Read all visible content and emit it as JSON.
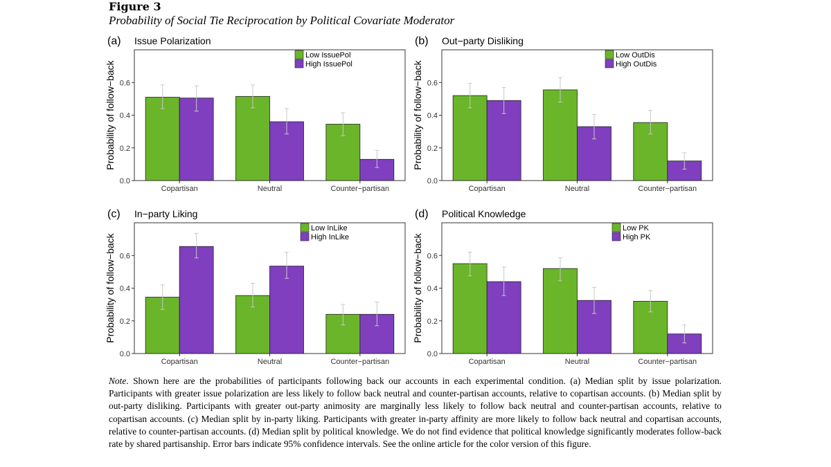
{
  "figure": {
    "title": "Figure 3",
    "subtitle": "Probability of Social Tie Reciprocation by Political Covariate Moderator"
  },
  "note": {
    "label": "Note",
    "text": ".  Shown here are the probabilities of participants following back our accounts in each experimental condition. (a) Median split by issue polarization. Participants with greater issue polarization are less likely to follow back neutral and counter-partisan accounts, relative to copartisan accounts. (b) Median split by out-party disliking. Participants with greater out-party animosity are marginally less likely to follow back neutral and counter-partisan accounts, relative to copartisan accounts. (c) Median split by in-party liking. Participants with greater in-party affinity are more likely to follow back neutral and copartisan accounts, relative to counter-partisan accounts. (d) Median split by political knowledge. We do not find evidence that political knowledge significantly moderates follow-back rate by shared partisanship. Error bars indicate 95% confidence intervals. See the online article for the color version of this figure."
  },
  "colors": {
    "low": "#6bb52a",
    "high": "#7f3fbf",
    "errorbar": "#c8c8c8",
    "axis": "#333333"
  },
  "chart_data": [
    {
      "type": "bar",
      "panel": "(a)",
      "title": "Issue Polarization",
      "ylabel": "Probability of follow−back",
      "ylim": [
        0,
        0.8
      ],
      "yticks": [
        "0.0",
        "0.2",
        "0.4",
        "0.6"
      ],
      "categories": [
        "Copartisan",
        "Neutral",
        "Counter−partisan"
      ],
      "series": [
        {
          "name": "Low IssuePol",
          "values": [
            0.51,
            0.515,
            0.345
          ],
          "ci_low": [
            0.44,
            0.445,
            0.275
          ],
          "ci_high": [
            0.585,
            0.585,
            0.415
          ]
        },
        {
          "name": "High IssuePol",
          "values": [
            0.505,
            0.36,
            0.13
          ],
          "ci_low": [
            0.425,
            0.285,
            0.08
          ],
          "ci_high": [
            0.58,
            0.44,
            0.185
          ]
        }
      ]
    },
    {
      "type": "bar",
      "panel": "(b)",
      "title": "Out−party Disliking",
      "ylabel": "Probability of follow−back",
      "ylim": [
        0,
        0.8
      ],
      "yticks": [
        "0.0",
        "0.2",
        "0.4",
        "0.6"
      ],
      "categories": [
        "Copartisan",
        "Neutral",
        "Counter−partisan"
      ],
      "series": [
        {
          "name": "Low OutDis",
          "values": [
            0.52,
            0.555,
            0.355
          ],
          "ci_low": [
            0.445,
            0.48,
            0.285
          ],
          "ci_high": [
            0.595,
            0.63,
            0.43
          ]
        },
        {
          "name": "High OutDis",
          "values": [
            0.49,
            0.33,
            0.12
          ],
          "ci_low": [
            0.41,
            0.255,
            0.07
          ],
          "ci_high": [
            0.57,
            0.405,
            0.17
          ]
        }
      ]
    },
    {
      "type": "bar",
      "panel": "(c)",
      "title": "In−party Liking",
      "ylabel": "Probability of follow−back",
      "ylim": [
        0,
        0.8
      ],
      "yticks": [
        "0.0",
        "0.2",
        "0.4",
        "0.6"
      ],
      "categories": [
        "Copartisan",
        "Neutral",
        "Counter−partisan"
      ],
      "series": [
        {
          "name": "Low InLike",
          "values": [
            0.345,
            0.355,
            0.24
          ],
          "ci_low": [
            0.27,
            0.285,
            0.175
          ],
          "ci_high": [
            0.42,
            0.43,
            0.3
          ]
        },
        {
          "name": "High InLike",
          "values": [
            0.655,
            0.535,
            0.24
          ],
          "ci_low": [
            0.585,
            0.46,
            0.17
          ],
          "ci_high": [
            0.735,
            0.62,
            0.315
          ]
        }
      ]
    },
    {
      "type": "bar",
      "panel": "(d)",
      "title": "Political Knowledge",
      "ylabel": "Probability of follow−back",
      "ylim": [
        0,
        0.8
      ],
      "yticks": [
        "0.0",
        "0.2",
        "0.4",
        "0.6"
      ],
      "categories": [
        "Copartisan",
        "Neutral",
        "Counter−partisan"
      ],
      "series": [
        {
          "name": "Low PK",
          "values": [
            0.55,
            0.52,
            0.32
          ],
          "ci_low": [
            0.475,
            0.445,
            0.255
          ],
          "ci_high": [
            0.62,
            0.585,
            0.385
          ]
        },
        {
          "name": "High PK",
          "values": [
            0.44,
            0.325,
            0.12
          ],
          "ci_low": [
            0.355,
            0.245,
            0.065
          ],
          "ci_high": [
            0.53,
            0.405,
            0.175
          ]
        }
      ]
    }
  ]
}
